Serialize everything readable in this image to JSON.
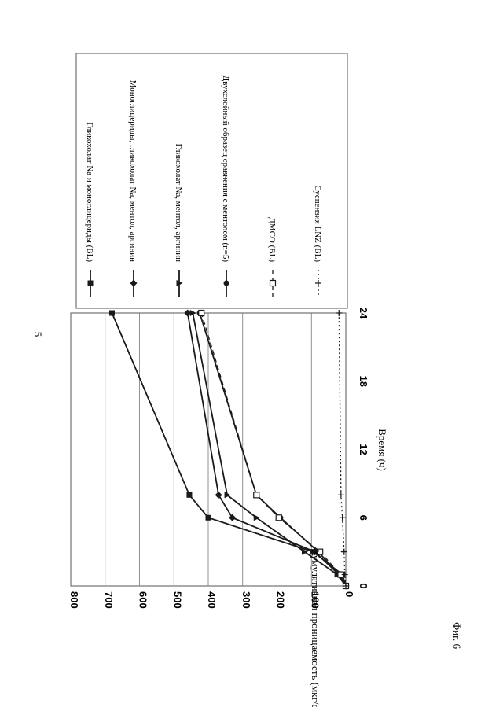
{
  "page_number": "5",
  "figure_label": "Фиг. 6",
  "chart_data": {
    "type": "line",
    "title": "",
    "xlabel": "Время (ч)",
    "ylabel": "Кумулятивная проницаемость (мкг/см²)",
    "xlim": [
      0,
      24
    ],
    "ylim": [
      0,
      800
    ],
    "x_ticks": [
      "0",
      "6",
      "12",
      "18",
      "24"
    ],
    "y_ticks": [
      "0",
      "100",
      "200",
      "300",
      "400",
      "500",
      "600",
      "700",
      "800"
    ],
    "grid": "horizontal",
    "legend_position": "right",
    "series": [
      {
        "name": "Гликохолат Na и моноглицериды (BL)",
        "marker": "square",
        "line": "solid",
        "x": [
          0,
          1,
          3,
          6,
          8,
          24
        ],
        "y": [
          0,
          10,
          95,
          400,
          455,
          680
        ]
      },
      {
        "name": "Моноглицериды, гликохолат Na, ментол, аргинин",
        "marker": "diamond",
        "line": "solid",
        "x": [
          0,
          1,
          3,
          6,
          8,
          24
        ],
        "y": [
          0,
          20,
          90,
          330,
          370,
          460
        ]
      },
      {
        "name": "Гликохолат Na, ментол, аргинин",
        "marker": "triangle",
        "line": "solid",
        "x": [
          0,
          1,
          3,
          6,
          8,
          24
        ],
        "y": [
          0,
          25,
          120,
          260,
          345,
          445
        ]
      },
      {
        "name": "Двухслойный образец сравнения с ментолом (n=5)",
        "marker": "circle",
        "line": "solid",
        "x": [
          0,
          1,
          3,
          6,
          8,
          24
        ],
        "y": [
          0,
          20,
          80,
          190,
          260,
          425
        ]
      },
      {
        "name": "ДМСО (BL)",
        "marker": "open-square",
        "line": "dashed",
        "x": [
          0,
          1,
          3,
          6,
          8,
          24
        ],
        "y": [
          0,
          15,
          75,
          195,
          260,
          420
        ]
      },
      {
        "name": "Суспензия LNZ (BL)",
        "marker": "plus",
        "line": "dotted",
        "x": [
          0,
          1,
          3,
          6,
          8,
          24
        ],
        "y": [
          0,
          3,
          5,
          10,
          14,
          20
        ]
      }
    ]
  }
}
